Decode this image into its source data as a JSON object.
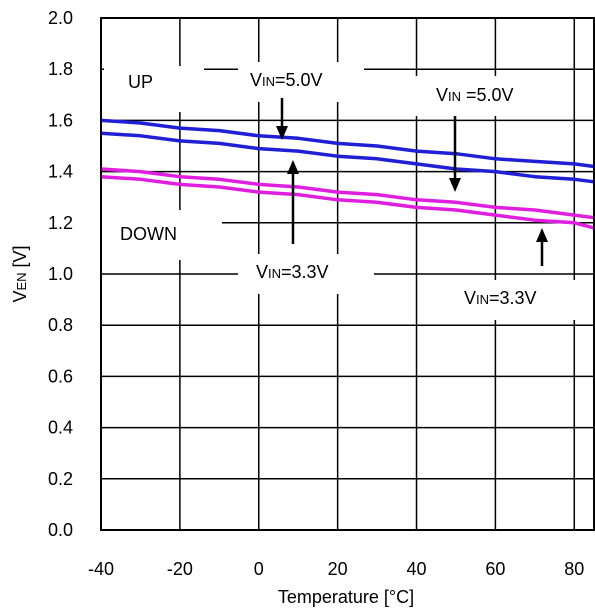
{
  "chart_data": {
    "type": "line",
    "xlabel": "Temperature [°C]",
    "ylabel": {
      "main": "V",
      "sub": "EN",
      "unit": " [V]"
    },
    "xlim": [
      -40,
      85
    ],
    "ylim": [
      0,
      2.0
    ],
    "x_ticks": [
      -40,
      -20,
      0,
      20,
      40,
      60,
      80
    ],
    "y_ticks": [
      "0.0",
      "0.2",
      "0.4",
      "0.6",
      "0.8",
      "1.0",
      "1.2",
      "1.4",
      "1.6",
      "1.8",
      "2.0"
    ],
    "grid": true,
    "series": [
      {
        "color": "#1f1fd6",
        "x": [
          -40,
          -30,
          -20,
          -10,
          0,
          10,
          20,
          30,
          40,
          50,
          60,
          70,
          80,
          85
        ],
        "y": [
          1.6,
          1.59,
          1.57,
          1.56,
          1.54,
          1.53,
          1.51,
          1.5,
          1.48,
          1.47,
          1.45,
          1.44,
          1.43,
          1.42
        ]
      },
      {
        "color": "#1f1fd6",
        "x": [
          -40,
          -30,
          -20,
          -10,
          0,
          10,
          20,
          30,
          40,
          50,
          60,
          70,
          80,
          85
        ],
        "y": [
          1.55,
          1.54,
          1.52,
          1.51,
          1.49,
          1.48,
          1.46,
          1.45,
          1.43,
          1.41,
          1.4,
          1.38,
          1.37,
          1.36
        ]
      },
      {
        "color": "#e01ee0",
        "x": [
          -40,
          -30,
          -20,
          -10,
          0,
          10,
          20,
          30,
          40,
          50,
          60,
          70,
          80,
          85
        ],
        "y": [
          1.41,
          1.4,
          1.38,
          1.37,
          1.35,
          1.34,
          1.32,
          1.31,
          1.29,
          1.28,
          1.26,
          1.25,
          1.23,
          1.22
        ]
      },
      {
        "color": "#e01ee0",
        "x": [
          -40,
          -30,
          -20,
          -10,
          0,
          10,
          20,
          30,
          40,
          50,
          60,
          70,
          80,
          85
        ],
        "y": [
          1.38,
          1.37,
          1.35,
          1.34,
          1.32,
          1.31,
          1.29,
          1.28,
          1.26,
          1.25,
          1.23,
          1.21,
          1.2,
          1.18
        ]
      }
    ],
    "annotations": [
      {
        "id": "up",
        "text": "UP"
      },
      {
        "id": "down",
        "text": "DOWN"
      },
      {
        "id": "vin5-left",
        "main": "V",
        "sub": "IN",
        "rest": "=5.0V"
      },
      {
        "id": "vin5-right",
        "main": "V",
        "sub": "IN",
        "rest": " =5.0V"
      },
      {
        "id": "vin33-left",
        "main": "V",
        "sub": "IN",
        "rest": "=3.3V"
      },
      {
        "id": "vin33-right",
        "main": "V",
        "sub": "IN",
        "rest": "=3.3V"
      }
    ]
  }
}
